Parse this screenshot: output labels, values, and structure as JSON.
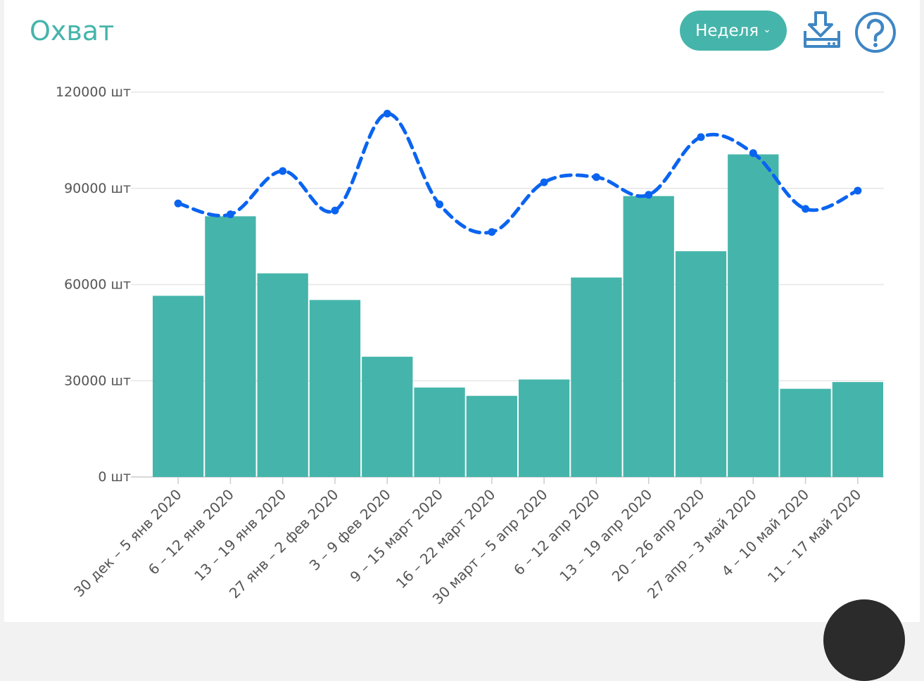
{
  "header": {
    "title": "Охват",
    "period_label": "Неделя",
    "download_icon": "download-icon",
    "help_icon": "help-icon"
  },
  "colors": {
    "bar": "#45b5ab",
    "line": "#0a64f0",
    "grid": "#e6e6e6"
  },
  "chart_data": {
    "type": "bar",
    "categories": [
      "30 дек – 5 янв 2020",
      "6 – 12 янв 2020",
      "13 – 19 янв 2020",
      "27 янв – 2 фев 2020",
      "3 – 9 фев 2020",
      "9 – 15 март 2020",
      "16 – 22 март 2020",
      "30 март – 5 апр 2020",
      "6 – 12 апр 2020",
      "13 – 19 апр 2020",
      "20 – 26 апр 2020",
      "27 апр – 3 май 2020",
      "4 – 10 май 2020",
      "11 – 17 май 2020"
    ],
    "series": [
      {
        "type": "bar",
        "values": [
          56500,
          81300,
          63500,
          55200,
          37500,
          27900,
          25300,
          30400,
          62200,
          87600,
          70400,
          100600,
          27500,
          29600
        ]
      },
      {
        "type": "line",
        "style": "dashed",
        "values": [
          85300,
          81900,
          95400,
          83100,
          113300,
          85000,
          76400,
          91900,
          93500,
          88000,
          106000,
          101000,
          83600,
          89300
        ]
      }
    ],
    "ylim": [
      0,
      120000
    ],
    "yticks": [
      0,
      30000,
      60000,
      90000,
      120000
    ],
    "ytick_labels": [
      "0 шт",
      "30000 шт",
      "60000 шт",
      "90000 шт",
      "120000 шт"
    ],
    "grid": true
  }
}
